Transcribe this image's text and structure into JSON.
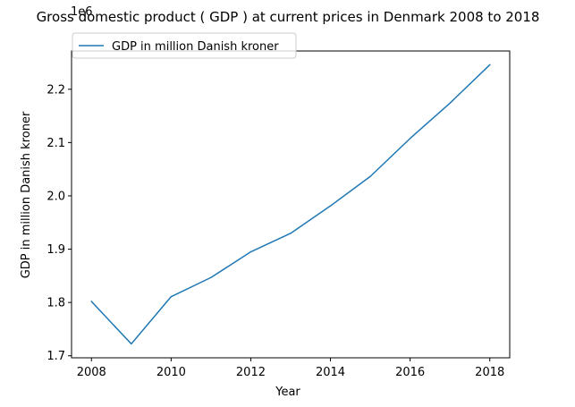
{
  "chart_data": {
    "type": "line",
    "title": "Gross domestic product ( GDP ) at current prices in Denmark 2008 to 2018",
    "xlabel": "Year",
    "ylabel": "GDP in million Danish kroner",
    "offset_text": "1e6",
    "x": [
      2008,
      2009,
      2010,
      2011,
      2012,
      2013,
      2014,
      2015,
      2016,
      2017,
      2018
    ],
    "series": [
      {
        "name": "GDP in million Danish kroner",
        "color": "#1f77b4",
        "values": [
          1801800,
          1722300,
          1810900,
          1846800,
          1895000,
          1929700,
          1981200,
          2036400,
          2107800,
          2174000,
          2245900
        ]
      }
    ],
    "xlim": [
      2007.5,
      2018.5
    ],
    "ylim": [
      1696200.0,
      2271800.0
    ],
    "xticks": [
      2008,
      2010,
      2012,
      2014,
      2016,
      2018
    ],
    "xtick_labels": [
      "2008",
      "2010",
      "2012",
      "2014",
      "2016",
      "2018"
    ],
    "yticks": [
      1700000.0,
      1800000.0,
      1900000.0,
      2000000.0,
      2100000.0,
      2200000.0
    ],
    "ytick_labels": [
      "1.7",
      "1.8",
      "1.9",
      "2.0",
      "2.1",
      "2.2"
    ],
    "grid": false,
    "legend_position": "top-left"
  }
}
